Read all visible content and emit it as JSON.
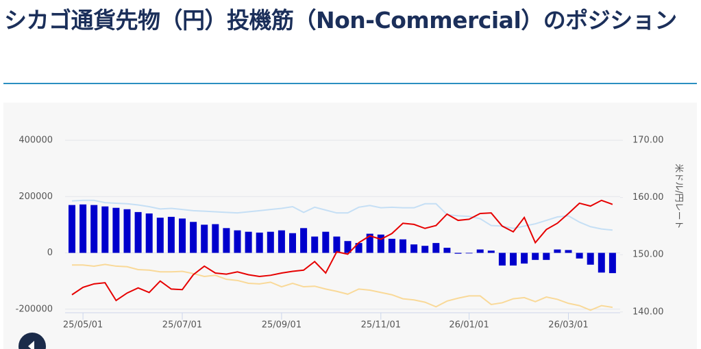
{
  "title": "シカゴ通貨先物（円）投機筋（Non-Commercial）のポジション",
  "chart_data": {
    "type": "bar-line",
    "y2_label": "米ドル/円レート",
    "categories": [
      null,
      "25/05/01",
      null,
      null,
      null,
      null,
      null,
      null,
      null,
      null,
      "25/07/01",
      null,
      null,
      null,
      null,
      null,
      null,
      null,
      null,
      "25/09/01",
      null,
      null,
      null,
      null,
      null,
      null,
      null,
      null,
      "25/11/01",
      null,
      null,
      null,
      null,
      null,
      null,
      null,
      "26/01/01",
      null,
      null,
      null,
      null,
      null,
      null,
      null,
      null,
      "26/03/01",
      null,
      null,
      null,
      null
    ],
    "ylim": [
      -220000,
      400000
    ],
    "yticks": [
      -200000,
      0,
      200000,
      400000
    ],
    "y2lim": [
      139.5,
      170
    ],
    "y2ticks": [
      {
        "value": 140,
        "label": "140.00"
      },
      {
        "value": 150,
        "label": "150.00"
      },
      {
        "value": 160,
        "label": "160.00"
      },
      {
        "value": 170,
        "label": "170.00"
      }
    ],
    "grid": true,
    "series": [
      {
        "type": "bar",
        "color": "#0000cc",
        "values": [
          170000,
          172000,
          170000,
          165000,
          160000,
          155000,
          145000,
          140000,
          125000,
          128000,
          122000,
          110000,
          100000,
          102000,
          88000,
          80000,
          75000,
          72000,
          75000,
          80000,
          70000,
          88000,
          58000,
          75000,
          58000,
          42000,
          35000,
          68000,
          65000,
          50000,
          48000,
          30000,
          25000,
          35000,
          18000,
          -3000,
          -2000,
          12000,
          8000,
          -45000,
          -45000,
          -38000,
          -25000,
          -25000,
          12000,
          10000,
          -20000,
          -42000,
          -70000,
          -72000
        ]
      },
      {
        "type": "line",
        "axis": "y2",
        "color": "#e60000",
        "values": [
          143.0,
          144.3,
          144.9,
          145.1,
          142.0,
          143.3,
          144.2,
          143.4,
          145.4,
          144.0,
          143.9,
          146.5,
          148.0,
          146.8,
          146.6,
          147.0,
          146.5,
          146.2,
          146.4,
          146.8,
          147.1,
          147.3,
          148.8,
          146.8,
          150.5,
          150.1,
          152.1,
          153.3,
          152.7,
          153.7,
          155.5,
          155.3,
          154.6,
          155.1,
          157.1,
          156.0,
          156.2,
          157.2,
          157.3,
          155.0,
          154.0,
          156.5,
          152.1,
          154.4,
          155.5,
          157.2,
          159.0,
          158.5,
          159.5,
          158.8
        ]
      },
      {
        "type": "line",
        "axis": "y2",
        "color": "#c5dff5",
        "values": [
          159.4,
          159.5,
          159.5,
          159.1,
          159.0,
          158.9,
          158.7,
          158.4,
          158.0,
          158.1,
          157.9,
          157.7,
          157.6,
          157.5,
          157.4,
          157.3,
          157.5,
          157.7,
          157.9,
          158.1,
          158.4,
          157.4,
          158.3,
          157.8,
          157.3,
          157.3,
          158.3,
          158.6,
          158.2,
          158.3,
          158.2,
          158.2,
          158.9,
          158.9,
          157.0,
          156.8,
          156.7,
          156.3,
          155.1,
          155.0,
          154.6,
          155.0,
          155.4,
          156.0,
          156.6,
          156.8,
          155.7,
          154.9,
          154.5,
          154.3
        ]
      },
      {
        "type": "line",
        "axis": "y2",
        "color": "#f9d998",
        "values": [
          148.2,
          148.2,
          148.0,
          148.3,
          148.0,
          147.9,
          147.4,
          147.3,
          147.0,
          147.0,
          147.1,
          146.7,
          146.2,
          146.4,
          145.7,
          145.5,
          145.0,
          144.9,
          145.2,
          144.4,
          145.0,
          144.4,
          144.5,
          144.0,
          143.6,
          143.1,
          144.0,
          143.8,
          143.4,
          143.0,
          142.3,
          142.1,
          141.7,
          140.9,
          141.9,
          142.4,
          142.8,
          142.8,
          141.3,
          141.6,
          142.3,
          142.5,
          141.8,
          142.6,
          142.2,
          141.5,
          141.1,
          140.3,
          141.1,
          140.8
        ]
      }
    ]
  }
}
